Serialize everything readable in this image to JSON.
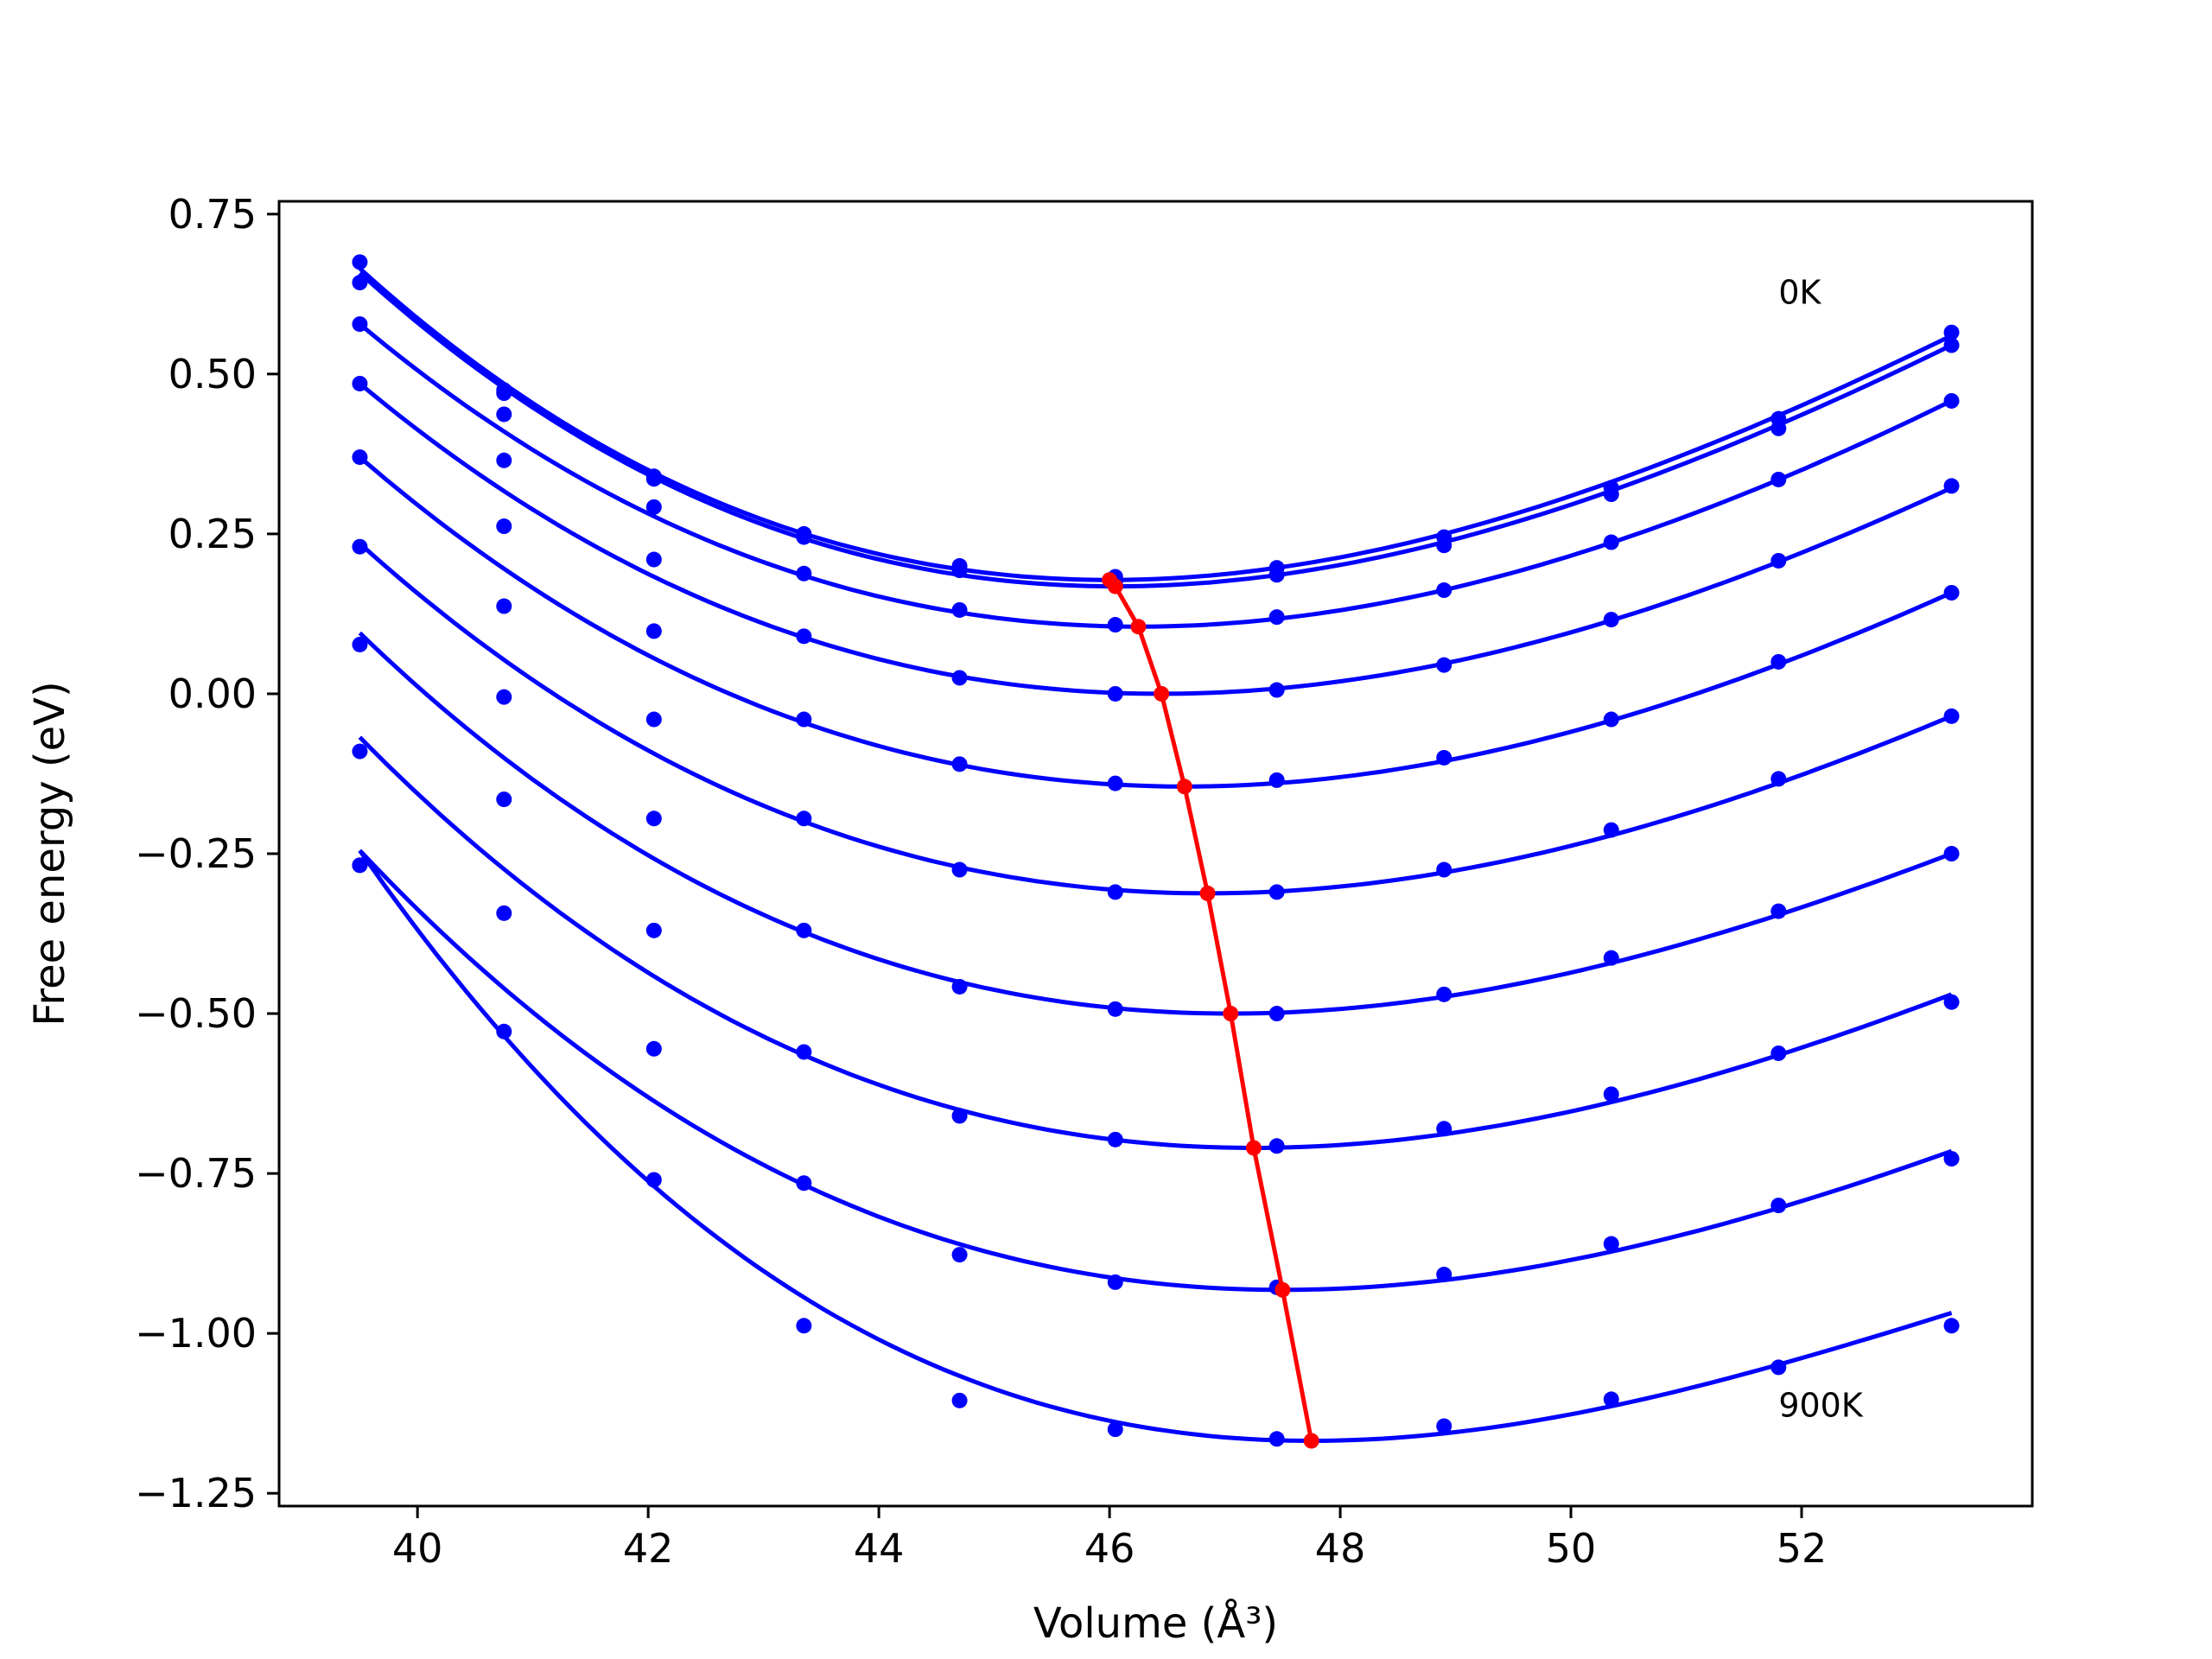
{
  "chart_data": {
    "type": "line",
    "xlabel": "Volume (Å³)",
    "ylabel": "Free energy (eV)",
    "xlim": [
      38.8,
      54.0
    ],
    "ylim": [
      -1.27,
      0.77
    ],
    "x_ticks": [
      40,
      42,
      44,
      46,
      48,
      50,
      52
    ],
    "y_ticks": [
      0.75,
      0.5,
      0.25,
      0.0,
      -0.25,
      -0.5,
      -0.75,
      -1.0,
      -1.25
    ],
    "x_tick_labels": [
      "40",
      "42",
      "44",
      "46",
      "48",
      "50",
      "52"
    ],
    "y_tick_labels": [
      "0.75",
      "0.50",
      "0.25",
      "0.00",
      "−0.25",
      "−0.50",
      "−0.75",
      "−1.00",
      "−1.25"
    ],
    "grid": false,
    "annotations": [
      {
        "text": "0K",
        "x": 51.8,
        "y": 0.61
      },
      {
        "text": "900K",
        "x": 51.8,
        "y": -1.13
      }
    ],
    "colors": {
      "isotherms": "#0000ff",
      "minimum_path": "#ff0000"
    },
    "volumes": [
      39.5,
      40.75,
      42.05,
      43.35,
      44.7,
      46.05,
      47.45,
      48.9,
      50.35,
      51.8,
      53.3
    ],
    "series": [
      {
        "points": [
          0.675,
          0.475,
          0.34,
          0.25,
          0.2,
          0.183,
          0.197,
          0.245,
          0.322,
          0.43,
          0.565
        ],
        "fit_endpoints": [
          0.665,
          0.56
        ],
        "minimum": {
          "x": 46.0,
          "y": 0.178
        }
      },
      {
        "points": [
          0.643,
          0.47,
          0.336,
          0.245,
          0.193,
          0.175,
          0.186,
          0.232,
          0.312,
          0.415,
          0.545
        ],
        "fit_endpoints": [
          0.658,
          0.545
        ],
        "minimum": {
          "x": 46.05,
          "y": 0.168
        }
      },
      {
        "points": [
          0.578,
          0.437,
          0.292,
          0.188,
          0.131,
          0.108,
          0.12,
          0.162,
          0.237,
          0.335,
          0.458
        ],
        "fit_endpoints": [
          0.578,
          0.458
        ],
        "minimum": {
          "x": 46.25,
          "y": 0.105
        }
      },
      {
        "points": [
          0.485,
          0.365,
          0.21,
          0.09,
          0.025,
          0.0,
          0.006,
          0.045,
          0.116,
          0.208,
          0.325
        ],
        "fit_endpoints": [
          0.485,
          0.322
        ],
        "minimum": {
          "x": 46.45,
          "y": 0.0
        }
      },
      {
        "points": [
          0.37,
          0.262,
          0.098,
          -0.04,
          -0.11,
          -0.14,
          -0.135,
          -0.1,
          -0.04,
          0.05,
          0.158
        ],
        "fit_endpoints": [
          0.37,
          0.158
        ],
        "minimum": {
          "x": 46.65,
          "y": -0.145
        }
      },
      {
        "points": [
          0.23,
          0.137,
          -0.04,
          -0.195,
          -0.275,
          -0.31,
          -0.31,
          -0.275,
          -0.213,
          -0.133,
          -0.035
        ],
        "fit_endpoints": [
          0.235,
          -0.035
        ],
        "minimum": {
          "x": 46.85,
          "y": -0.312
        }
      },
      {
        "points": [
          0.077,
          -0.005,
          -0.195,
          -0.37,
          -0.458,
          -0.493,
          -0.5,
          -0.47,
          -0.413,
          -0.34,
          -0.25
        ],
        "fit_endpoints": [
          0.095,
          -0.25
        ],
        "minimum": {
          "x": 47.05,
          "y": -0.5
        }
      },
      {
        "points": [
          -0.09,
          -0.165,
          -0.37,
          -0.56,
          -0.66,
          -0.697,
          -0.707,
          -0.68,
          -0.626,
          -0.562,
          -0.482
        ],
        "fit_endpoints": [
          -0.068,
          -0.47
        ],
        "minimum": {
          "x": 47.25,
          "y": -0.71
        }
      },
      {
        "points": [
          -0.268,
          -0.343,
          -0.555,
          -0.765,
          -0.877,
          -0.92,
          -0.928,
          -0.908,
          -0.86,
          -0.8,
          -0.727
        ],
        "fit_endpoints": [
          -0.245,
          -0.715
        ],
        "minimum": {
          "x": 47.5,
          "y": -0.932
        }
      },
      {
        "points": [
          -0.268,
          -0.528,
          -0.76,
          -0.988,
          -1.105,
          -1.15,
          -1.165,
          -1.145,
          -1.103,
          -1.053,
          -0.988
        ],
        "fit_endpoints": [
          -0.245,
          -0.968
        ],
        "minimum": {
          "x": 47.75,
          "y": -1.168
        }
      }
    ]
  }
}
